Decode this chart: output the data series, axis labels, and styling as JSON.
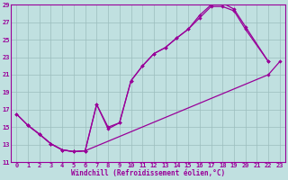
{
  "xlabel": "Windchill (Refroidissement éolien,°C)",
  "bg_color": "#c0e0e0",
  "line_color": "#990099",
  "grid_color": "#9bbdbd",
  "xlim": [
    -0.5,
    23.5
  ],
  "ylim": [
    11,
    29
  ],
  "xticks": [
    0,
    1,
    2,
    3,
    4,
    5,
    6,
    7,
    8,
    9,
    10,
    11,
    12,
    13,
    14,
    15,
    16,
    17,
    18,
    19,
    20,
    21,
    22,
    23
  ],
  "yticks": [
    11,
    13,
    15,
    17,
    19,
    21,
    23,
    25,
    27,
    29
  ],
  "line1_x": [
    0,
    1,
    2,
    3,
    4,
    5,
    6,
    7,
    8,
    9,
    10,
    11,
    12,
    13,
    14,
    15,
    16,
    17,
    18,
    19,
    20,
    22
  ],
  "line1_y": [
    16.5,
    15.2,
    14.2,
    13.1,
    12.4,
    12.2,
    12.3,
    17.6,
    14.8,
    15.5,
    20.3,
    22.0,
    23.4,
    24.1,
    25.2,
    26.2,
    27.5,
    28.8,
    28.8,
    28.3,
    26.2,
    22.5
  ],
  "line2_x": [
    1,
    2,
    3,
    4,
    5,
    6,
    7,
    8,
    9,
    10,
    11,
    12,
    13,
    14,
    15,
    16,
    17,
    18,
    19,
    20,
    22
  ],
  "line2_y": [
    15.2,
    14.2,
    13.1,
    12.4,
    12.2,
    12.3,
    17.6,
    15.0,
    15.5,
    20.3,
    22.0,
    23.4,
    24.1,
    25.2,
    26.2,
    27.8,
    29.0,
    29.2,
    28.5,
    26.5,
    22.5
  ],
  "line3_x": [
    0,
    1,
    2,
    3,
    4,
    5,
    6,
    22,
    23
  ],
  "line3_y": [
    16.5,
    15.2,
    14.2,
    13.1,
    12.4,
    12.2,
    12.3,
    21.0,
    22.5
  ]
}
